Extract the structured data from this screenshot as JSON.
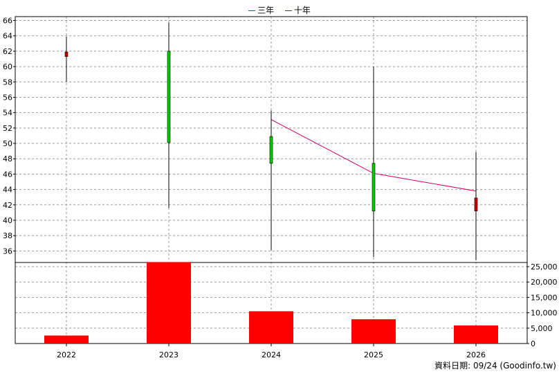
{
  "legend": {
    "items": [
      {
        "label": "三年",
        "color": "#cc0066"
      },
      {
        "label": "十年",
        "color": "#3333aa"
      }
    ]
  },
  "source_note": "資料日期: 09/24  (Goodinfo.tw)",
  "chart_data": [
    {
      "type": "candlestick",
      "categories": [
        "2022",
        "2023",
        "2024",
        "2025",
        "2026"
      ],
      "candles": [
        {
          "open": 61.9,
          "close": 61.3,
          "high": 63.9,
          "low": 58.0
        },
        {
          "open": 50.1,
          "close": 62.0,
          "high": 65.7,
          "low": 41.6
        },
        {
          "open": 47.4,
          "close": 50.9,
          "high": 54.3,
          "low": 36.1
        },
        {
          "open": 41.2,
          "close": 47.4,
          "high": 60.0,
          "low": 35.2
        },
        {
          "open": 42.9,
          "close": 41.2,
          "high": 48.9,
          "low": 34.8
        }
      ],
      "series": [
        {
          "name": "三年",
          "values": [
            null,
            null,
            53.1,
            46.1,
            43.8
          ]
        }
      ],
      "yticks": [
        36,
        38,
        40,
        42,
        44,
        46,
        48,
        50,
        52,
        54,
        56,
        58,
        60,
        62,
        64,
        66
      ],
      "ylim": [
        34.5,
        66.5
      ],
      "up_color": "#00cc00",
      "down_color": "#cc0000",
      "grid": true
    },
    {
      "type": "bar",
      "categories": [
        "2022",
        "2023",
        "2024",
        "2025",
        "2026"
      ],
      "values": [
        2600,
        26500,
        10500,
        7900,
        5900
      ],
      "yticks": [
        0,
        5000,
        10000,
        15000,
        20000,
        25000
      ],
      "ytick_labels": [
        "0",
        "5,000",
        "10,000",
        "15,000",
        "20,000",
        "25,000"
      ],
      "ylim": [
        0,
        25000
      ],
      "bar_color": "#ff0000",
      "grid": true
    }
  ]
}
